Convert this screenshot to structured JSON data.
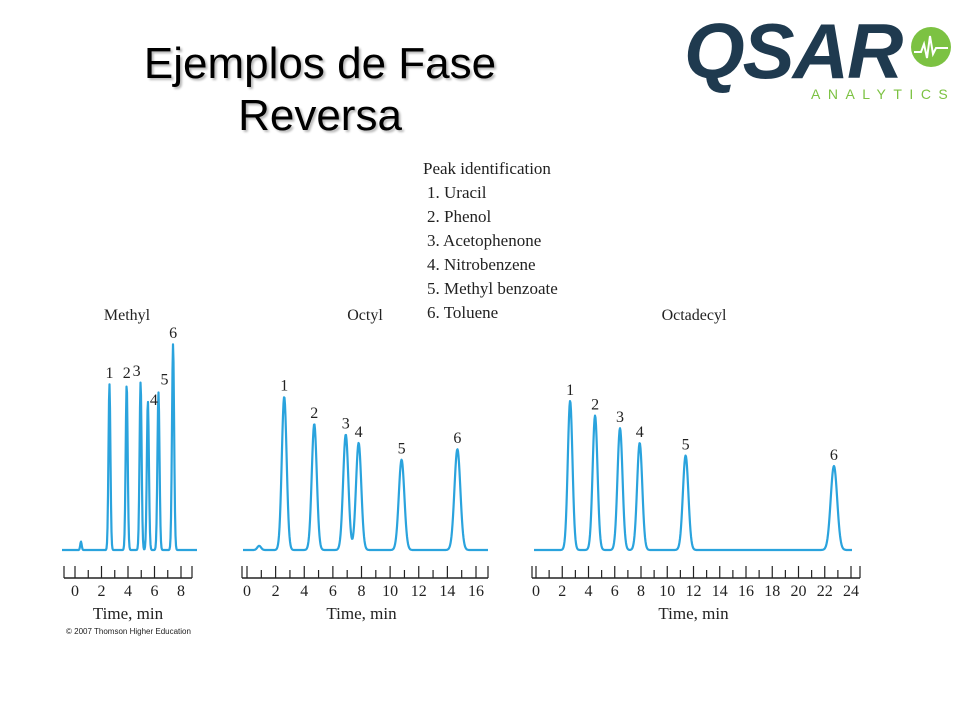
{
  "slide": {
    "title": "Ejemplos de Fase Reversa"
  },
  "logo": {
    "word": "QSAR",
    "subtitle": "ANALYTICS",
    "colors": {
      "dark": "#1f3a4f",
      "green": "#7cc242"
    }
  },
  "legend": {
    "heading": "Peak identification",
    "items": [
      "1.  Uracil",
      "2.  Phenol",
      "3.  Acetophenone",
      "4.  Nitrobenzene",
      "5.  Methyl benzoate",
      "6.  Toluene"
    ]
  },
  "copyright": "© 2007 Thomson Higher Education",
  "colors": {
    "trace": "#2aa3dd",
    "axis": "#222222"
  },
  "chart_data": [
    {
      "type": "line",
      "title": "Methyl",
      "xlabel": "Time, min",
      "xlim": [
        0,
        8
      ],
      "xticks": [
        0,
        2,
        4,
        6,
        8
      ],
      "peaks": [
        {
          "label": "1",
          "t": 2.6,
          "height": 0.79
        },
        {
          "label": "2",
          "t": 3.9,
          "height": 0.79
        },
        {
          "label": "3",
          "t": 4.95,
          "height": 0.8
        },
        {
          "label": "4",
          "t": 5.5,
          "height": 0.71
        },
        {
          "label": "5",
          "t": 6.3,
          "height": 0.75
        },
        {
          "label": "6",
          "t": 7.4,
          "height": 0.98
        }
      ]
    },
    {
      "type": "line",
      "title": "Octyl",
      "xlabel": "Time, min",
      "xlim": [
        0,
        16
      ],
      "xticks": [
        0,
        2,
        4,
        6,
        8,
        10,
        12,
        14,
        16
      ],
      "peaks": [
        {
          "label": "1",
          "t": 2.6,
          "height": 0.73
        },
        {
          "label": "2",
          "t": 4.7,
          "height": 0.6
        },
        {
          "label": "3",
          "t": 6.9,
          "height": 0.55
        },
        {
          "label": "4",
          "t": 7.8,
          "height": 0.51
        },
        {
          "label": "5",
          "t": 10.8,
          "height": 0.43
        },
        {
          "label": "6",
          "t": 14.7,
          "height": 0.48
        }
      ]
    },
    {
      "type": "line",
      "title": "Octadecyl",
      "xlabel": "Time, min",
      "xlim": [
        0,
        24
      ],
      "xticks": [
        0,
        2,
        4,
        6,
        8,
        10,
        12,
        14,
        16,
        18,
        20,
        22,
        24
      ],
      "peaks": [
        {
          "label": "1",
          "t": 2.6,
          "height": 0.71
        },
        {
          "label": "2",
          "t": 4.5,
          "height": 0.64
        },
        {
          "label": "3",
          "t": 6.4,
          "height": 0.58
        },
        {
          "label": "4",
          "t": 7.9,
          "height": 0.51
        },
        {
          "label": "5",
          "t": 11.4,
          "height": 0.45
        },
        {
          "label": "6",
          "t": 22.7,
          "height": 0.4
        }
      ]
    }
  ]
}
